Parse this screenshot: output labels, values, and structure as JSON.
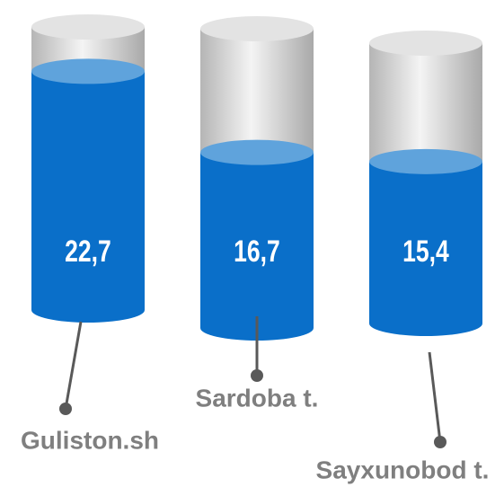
{
  "chart_data": {
    "type": "bar",
    "categories": [
      "Guliston.sh",
      "Sardoba t.",
      "Sayxunobod t."
    ],
    "values": [
      22.7,
      16.7,
      15.4
    ],
    "value_labels": [
      "22,7",
      "16,7",
      "15,4"
    ],
    "color": "#0a6fc9"
  }
}
